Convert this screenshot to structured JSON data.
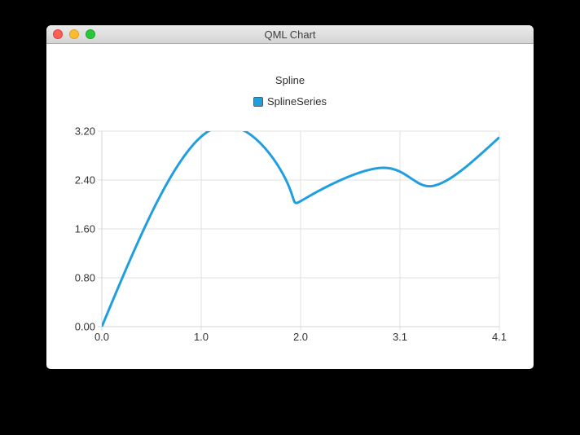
{
  "window": {
    "title": "QML Chart",
    "controls": [
      {
        "name": "close",
        "color": "#fc5f56",
        "border": "#e0443e"
      },
      {
        "name": "minimize",
        "color": "#fdbc2e",
        "border": "#dea123"
      },
      {
        "name": "zoom",
        "color": "#29c63c",
        "border": "#1aab29"
      }
    ]
  },
  "chart": {
    "title": "Spline",
    "legend": {
      "label": "SplineSeries"
    }
  },
  "chart_data": {
    "type": "line",
    "subtype": "spline",
    "title": "Spline",
    "legend_position": "top",
    "legend_entries": [
      "SplineSeries"
    ],
    "grid": true,
    "xlim": [
      0.0,
      4.1
    ],
    "ylim": [
      0.0,
      3.2
    ],
    "series": [
      {
        "name": "SplineSeries",
        "color": "#209fdf",
        "points": [
          [
            0.0,
            0.0
          ],
          [
            1.1,
            3.2
          ],
          [
            1.9,
            2.4
          ],
          [
            2.1,
            2.1
          ],
          [
            2.9,
            2.6
          ],
          [
            3.4,
            2.3
          ],
          [
            4.1,
            3.1
          ]
        ]
      }
    ],
    "x_ticks": {
      "values": [
        0.0,
        1.025,
        2.05,
        3.075,
        4.1
      ],
      "labels": [
        "0.0",
        "1.0",
        "2.0",
        "3.1",
        "4.1"
      ]
    },
    "y_ticks": {
      "values": [
        0.0,
        0.8,
        1.6,
        2.4,
        3.2
      ],
      "labels": [
        "0.00",
        "0.80",
        "1.60",
        "2.40",
        "3.20"
      ]
    },
    "colors": {
      "series": "#209fdf",
      "grid": "#e2e2e2",
      "axis_line": "#d4d4d4",
      "axis_label": "#333333",
      "background": "#ffffff"
    }
  }
}
